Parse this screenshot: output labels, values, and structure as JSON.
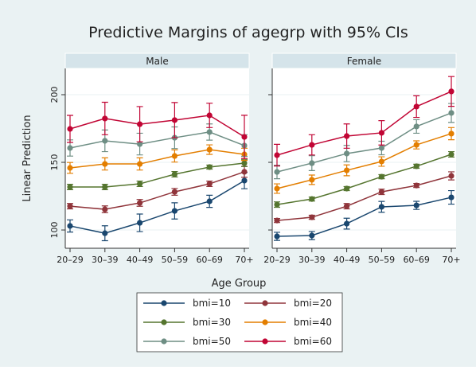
{
  "chart_data": {
    "type": "line",
    "title": "Predictive Margins of agegrp with 95% CIs",
    "x_label": "Age Group",
    "y_label": "Linear Prediction",
    "panels": [
      "Male",
      "Female"
    ],
    "categories": [
      "20–29",
      "30–39",
      "40–49",
      "50–59",
      "60–69",
      "70+"
    ],
    "ylim": [
      86.5,
      219.4
    ],
    "yticks": [
      100,
      150,
      200
    ],
    "grid": true,
    "series": [
      {
        "name": "bmi=10",
        "color": "#1a476f",
        "values": [
          [
            103,
            97.6,
            105.3,
            114.1,
            121.2,
            136.5
          ],
          [
            95.3,
            95.9,
            104.7,
            117.1,
            118.2,
            124.1
          ]
        ],
        "errors": [
          [
            4.5,
            5.5,
            6.5,
            6,
            4.5,
            6
          ],
          [
            3,
            3,
            4,
            4,
            3,
            5
          ]
        ]
      },
      {
        "name": "bmi=20",
        "color": "#90353b",
        "values": [
          [
            117.6,
            115.3,
            120,
            128.2,
            134.1,
            143
          ],
          [
            107,
            109.4,
            117.6,
            128.2,
            132.9,
            140
          ]
        ],
        "errors": [
          [
            2,
            2.5,
            2.5,
            2.5,
            2,
            4
          ],
          [
            1.5,
            1.5,
            2,
            2,
            1.5,
            3
          ]
        ]
      },
      {
        "name": "bmi=30",
        "color": "#55752f",
        "values": [
          [
            131.8,
            131.8,
            134.1,
            141.2,
            146.5,
            149.4
          ],
          [
            118.8,
            122.9,
            130.6,
            139.4,
            147.1,
            155.9
          ]
        ],
        "errors": [
          [
            2,
            2,
            2,
            2,
            1.5,
            2.5
          ],
          [
            2,
            1.5,
            1.5,
            1.5,
            1.5,
            2
          ]
        ]
      },
      {
        "name": "bmi=40",
        "color": "#e37e00",
        "values": [
          [
            145.9,
            148.8,
            148.8,
            154.7,
            159.4,
            155.9
          ],
          [
            130.6,
            137.1,
            144.1,
            150.6,
            162.9,
            171.2
          ]
        ],
        "errors": [
          [
            4,
            4.5,
            4.5,
            4.5,
            3.5,
            4.5
          ],
          [
            3.5,
            3.5,
            4,
            3.5,
            3,
            4.5
          ]
        ]
      },
      {
        "name": "bmi=50",
        "color": "#6e8e84",
        "values": [
          [
            160.6,
            165.9,
            163.5,
            168.2,
            172.4,
            162.4
          ],
          [
            142.9,
            149.4,
            156.5,
            160.6,
            176.5,
            186.5
          ]
        ],
        "errors": [
          [
            6,
            8,
            8,
            8,
            6,
            8
          ],
          [
            5,
            5.5,
            6,
            5,
            5,
            7
          ]
        ]
      },
      {
        "name": "bmi=60",
        "color": "#c10534",
        "values": [
          [
            174.7,
            182.4,
            178.2,
            181.2,
            184.7,
            168.8
          ],
          [
            155.3,
            162.9,
            169.4,
            171.8,
            191.2,
            202.4
          ]
        ],
        "errors": [
          [
            10,
            12,
            13,
            13,
            9,
            16
          ],
          [
            8,
            7.5,
            9,
            9,
            8,
            11
          ]
        ]
      }
    ]
  }
}
